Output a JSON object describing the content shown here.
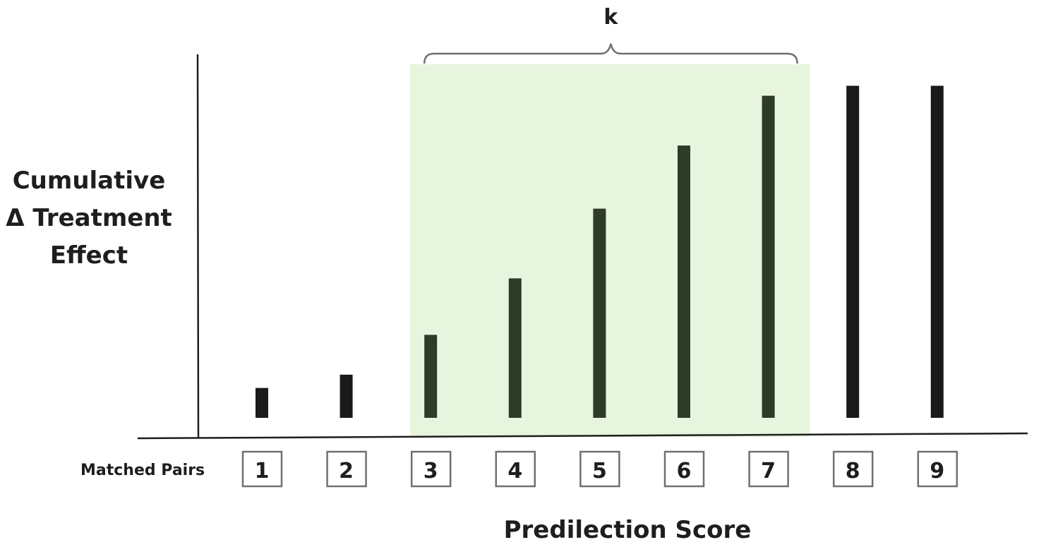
{
  "chart_data": {
    "type": "bar",
    "ylabel_lines": [
      "Cumulative",
      "Δ Treatment",
      "Effect"
    ],
    "xlabel": "Predilection Score",
    "row_label": "Matched Pairs",
    "categories": [
      "1",
      "2",
      "3",
      "4",
      "5",
      "6",
      "7",
      "8",
      "9"
    ],
    "values": [
      0.09,
      0.13,
      0.25,
      0.42,
      0.63,
      0.82,
      0.97,
      1.0,
      1.0
    ],
    "ylim": [
      0,
      1.05
    ],
    "highlight": {
      "label": "k",
      "from_category": "3",
      "to_category": "7",
      "color": "#e8f5de"
    },
    "colors": {
      "bar": "#1a1a1a",
      "bar_highlighted": "#2e3b26",
      "axis": "#1e1e1e",
      "brace": "#707070"
    },
    "grid": false,
    "legend": "none"
  }
}
